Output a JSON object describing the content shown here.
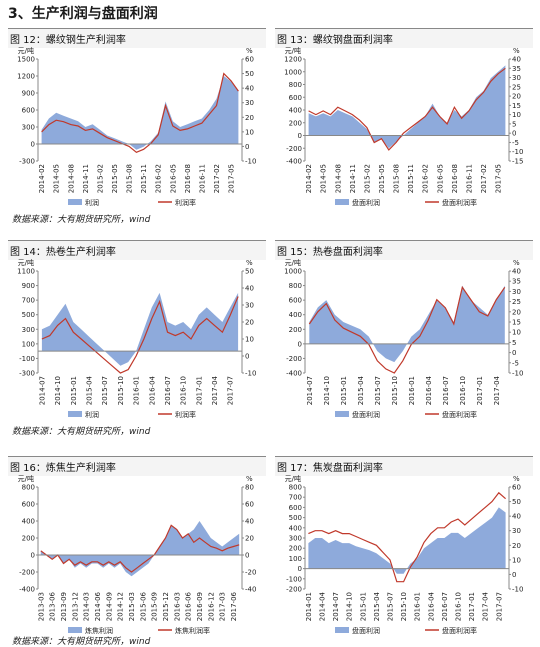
{
  "heading": "3、生产利润与盘面利润",
  "sources": [
    "数据来源：大有期货研究所，wind",
    "数据来源：大有期货研究所，wind",
    "数据来源：大有期货研究所，wind"
  ],
  "chart_data": [
    {
      "type": "combo",
      "title": "图 12：螺纹钢生产利润率",
      "y_unit": "元/吨",
      "y2_unit": "%",
      "categories": [
        "2014-02",
        null,
        "2014-05",
        null,
        "2014-08",
        null,
        "2014-11",
        null,
        "2015-02",
        null,
        "2015-05",
        null,
        "2015-08",
        null,
        "2015-11",
        null,
        "2016-02",
        null,
        "2016-05",
        null,
        "2016-08",
        null,
        "2016-11",
        null,
        "2017-02",
        null,
        "2017-05",
        null
      ],
      "series": [
        {
          "name": "利润",
          "color": "#8eaadb",
          "values": [
            250,
            450,
            550,
            500,
            450,
            400,
            300,
            350,
            250,
            150,
            100,
            50,
            0,
            -100,
            -50,
            50,
            200,
            750,
            400,
            300,
            350,
            400,
            450,
            600,
            800,
            1200,
            1100,
            950
          ]
        },
        {
          "name": "利润率",
          "color": "#c0392b",
          "axis": "y2",
          "values": [
            10,
            15,
            18,
            17,
            15,
            14,
            11,
            12,
            9,
            6,
            4,
            2,
            0,
            -4,
            -2,
            2,
            8,
            28,
            14,
            11,
            12,
            14,
            16,
            22,
            28,
            50,
            45,
            38
          ]
        }
      ],
      "ylim": [
        -300,
        1500
      ],
      "yticks": [
        -300,
        0,
        300,
        600,
        900,
        1200,
        1500
      ],
      "y2lim": [
        -10,
        60
      ],
      "y2ticks": [
        -10,
        0,
        10,
        20,
        30,
        40,
        50,
        60
      ]
    },
    {
      "type": "combo",
      "title": "图 13：螺纹钢盘面利润率",
      "y_unit": "元/吨",
      "y2_unit": "%",
      "categories": [
        "2014-02",
        null,
        "2014-05",
        null,
        "2014-08",
        null,
        "2014-11",
        null,
        "2015-02",
        null,
        "2015-05",
        null,
        "2015-08",
        null,
        "2015-11",
        null,
        "2016-02",
        null,
        "2016-05",
        null,
        "2016-08",
        null,
        "2016-11",
        null,
        "2017-02",
        null,
        "2017-05",
        null
      ],
      "series": [
        {
          "name": "盘面利润",
          "color": "#8eaadb",
          "values": [
            350,
            300,
            350,
            300,
            400,
            350,
            300,
            200,
            100,
            -100,
            -50,
            -200,
            -100,
            0,
            100,
            200,
            300,
            500,
            300,
            200,
            400,
            300,
            400,
            600,
            700,
            900,
            1000,
            1100
          ]
        },
        {
          "name": "盘面利润率",
          "color": "#c0392b",
          "axis": "y2",
          "values": [
            12,
            10,
            12,
            10,
            14,
            12,
            10,
            7,
            3,
            -5,
            -3,
            -9,
            -5,
            0,
            3,
            6,
            9,
            14,
            9,
            5,
            14,
            8,
            12,
            18,
            22,
            28,
            32,
            35
          ]
        }
      ],
      "ylim": [
        -400,
        1200
      ],
      "yticks": [
        -400,
        -200,
        0,
        200,
        400,
        600,
        800,
        1000,
        1200
      ],
      "y2lim": [
        -15,
        40
      ],
      "y2ticks": [
        -15,
        -10,
        -5,
        0,
        5,
        10,
        15,
        20,
        25,
        30,
        35,
        40
      ]
    },
    {
      "type": "combo",
      "title": "图 14：热卷生产利润率",
      "y_unit": "元/吨",
      "y2_unit": "%",
      "categories": [
        "2014-07",
        null,
        "2014-10",
        null,
        "2015-01",
        null,
        "2015-04",
        null,
        "2015-07",
        null,
        "2015-10",
        null,
        "2016-01",
        null,
        "2016-04",
        null,
        "2016-07",
        null,
        "2016-10",
        null,
        "2017-01",
        null,
        "2017-04",
        null,
        "2017-07",
        null
      ],
      "series": [
        {
          "name": "利润",
          "color": "#8eaadb",
          "values": [
            300,
            350,
            500,
            650,
            400,
            300,
            200,
            100,
            0,
            -100,
            -200,
            -150,
            0,
            300,
            600,
            800,
            400,
            350,
            400,
            300,
            500,
            600,
            500,
            400,
            600,
            800
          ]
        },
        {
          "name": "利润率",
          "color": "#c0392b",
          "axis": "y2",
          "values": [
            10,
            12,
            18,
            22,
            14,
            10,
            6,
            2,
            -2,
            -6,
            -10,
            -8,
            0,
            10,
            22,
            32,
            14,
            12,
            14,
            10,
            18,
            22,
            18,
            14,
            24,
            35
          ]
        }
      ],
      "ylim": [
        -300,
        1100
      ],
      "yticks": [
        -300,
        -100,
        100,
        300,
        500,
        700,
        900,
        1100
      ],
      "y2lim": [
        -10,
        50
      ],
      "y2ticks": [
        -10,
        0,
        10,
        20,
        30,
        40,
        50
      ]
    },
    {
      "type": "combo",
      "title": "图 15：热卷盘面利润率",
      "y_unit": "元/吨",
      "y2_unit": "%",
      "categories": [
        "2014-07",
        null,
        "2014-10",
        null,
        "2015-01",
        null,
        "2015-04",
        null,
        "2015-07",
        null,
        "2015-10",
        null,
        "2016-01",
        null,
        "2016-04",
        null,
        "2016-07",
        null,
        "2016-10",
        null,
        "2017-01",
        null,
        "2017-04",
        null
      ],
      "series": [
        {
          "name": "盘面利润",
          "color": "#8eaadb",
          "values": [
            300,
            500,
            600,
            400,
            300,
            250,
            200,
            100,
            -100,
            -200,
            -250,
            -100,
            100,
            200,
            400,
            600,
            500,
            300,
            800,
            600,
            500,
            400,
            600,
            800
          ]
        },
        {
          "name": "盘面利润率",
          "color": "#c0392b",
          "axis": "y2",
          "values": [
            14,
            20,
            24,
            16,
            12,
            10,
            8,
            4,
            -4,
            -8,
            -10,
            -4,
            4,
            8,
            16,
            26,
            22,
            14,
            32,
            26,
            20,
            18,
            26,
            32
          ]
        }
      ],
      "ylim": [
        -400,
        1000
      ],
      "yticks": [
        -400,
        -200,
        0,
        200,
        400,
        600,
        800,
        1000
      ],
      "y2lim": [
        -10,
        40
      ],
      "y2ticks": [
        -10,
        -5,
        0,
        5,
        10,
        15,
        20,
        25,
        30,
        35,
        40
      ]
    },
    {
      "type": "combo",
      "title": "图 16：炼焦生产利润率",
      "y_unit": "元/吨",
      "y2_unit": "%",
      "categories": [
        "2013-03",
        null,
        "2013-06",
        null,
        "2013-09",
        null,
        "2013-12",
        null,
        "2014-03",
        null,
        "2014-06",
        null,
        "2014-09",
        null,
        "2014-12",
        null,
        "2015-03",
        null,
        "2015-06",
        null,
        "2015-09",
        null,
        "2015-12",
        null,
        "2016-03",
        null,
        "2016-06",
        null,
        "2016-09",
        null,
        "2016-12",
        null,
        "2017-03",
        null,
        "2017-06",
        null
      ],
      "series": [
        {
          "name": "炼焦利润",
          "color": "#8eaadb",
          "values": [
            50,
            0,
            -50,
            0,
            -100,
            -50,
            -150,
            -100,
            -150,
            -100,
            -100,
            -150,
            -100,
            -150,
            -100,
            -200,
            -250,
            -200,
            -150,
            -100,
            0,
            100,
            200,
            350,
            300,
            200,
            250,
            300,
            400,
            300,
            200,
            150,
            100,
            150,
            200,
            250
          ]
        },
        {
          "name": "炼焦利润率",
          "color": "#c0392b",
          "axis": "y2",
          "values": [
            5,
            0,
            -5,
            0,
            -10,
            -5,
            -12,
            -8,
            -12,
            -8,
            -8,
            -12,
            -8,
            -12,
            -8,
            -15,
            -20,
            -15,
            -10,
            -5,
            0,
            10,
            20,
            35,
            30,
            20,
            25,
            15,
            20,
            15,
            10,
            8,
            5,
            8,
            10,
            12
          ]
        }
      ],
      "ylim": [
        -400,
        800
      ],
      "yticks": [
        -400,
        -200,
        0,
        200,
        400,
        600,
        800
      ],
      "y2lim": [
        -40,
        80
      ],
      "y2ticks": [
        -40,
        -20,
        0,
        20,
        40,
        60,
        80
      ]
    },
    {
      "type": "combo",
      "title": "图 17：焦炭盘面利润率",
      "y_unit": "元/吨",
      "y2_unit": "%",
      "categories": [
        "2014-01",
        null,
        "2014-04",
        null,
        "2014-07",
        null,
        "2014-10",
        null,
        "2015-01",
        null,
        "2015-04",
        null,
        "2015-07",
        null,
        "2015-10",
        null,
        "2016-01",
        null,
        "2016-04",
        null,
        "2016-07",
        null,
        "2016-10",
        null,
        "2017-01",
        null,
        "2017-04",
        null,
        "2017-07",
        null
      ],
      "series": [
        {
          "name": "盘面利润",
          "color": "#8eaadb",
          "values": [
            250,
            300,
            300,
            250,
            280,
            250,
            250,
            220,
            200,
            180,
            150,
            100,
            50,
            -50,
            -50,
            50,
            100,
            200,
            250,
            300,
            300,
            350,
            350,
            300,
            350,
            400,
            450,
            500,
            600,
            550
          ]
        },
        {
          "name": "盘面利润率",
          "color": "#c0392b",
          "axis": "y2",
          "values": [
            28,
            30,
            30,
            28,
            30,
            28,
            28,
            26,
            24,
            22,
            20,
            15,
            10,
            -5,
            -5,
            5,
            12,
            22,
            28,
            32,
            32,
            36,
            38,
            34,
            38,
            42,
            46,
            50,
            56,
            52
          ]
        }
      ],
      "ylim": [
        -200,
        800
      ],
      "yticks": [
        -200,
        -100,
        0,
        100,
        200,
        300,
        400,
        500,
        600,
        700,
        800
      ],
      "y2lim": [
        -10,
        60
      ],
      "y2ticks": [
        -10,
        0,
        10,
        20,
        30,
        40,
        50,
        60
      ]
    }
  ]
}
